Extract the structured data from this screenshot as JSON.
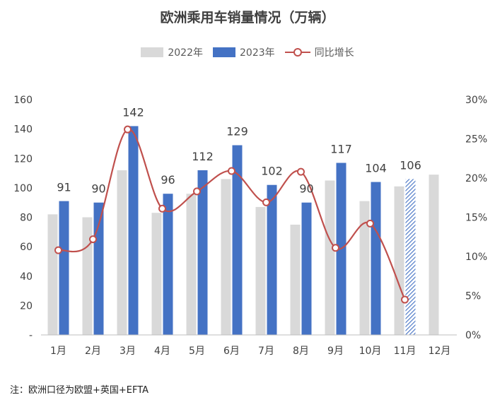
{
  "title": "欧洲乘用车销量情况（万辆）",
  "note": "注：欧洲口径为欧盟+英国+EFTA",
  "colors": {
    "s2022": "#d9d9d9",
    "s2023": "#4472c4",
    "yoy": "#c0504d"
  },
  "chart_data": {
    "type": "bar",
    "title": "欧洲乘用车销量情况（万辆）",
    "categories": [
      "1月",
      "2月",
      "3月",
      "4月",
      "5月",
      "6月",
      "7月",
      "8月",
      "9月",
      "10月",
      "11月",
      "12月"
    ],
    "series": [
      {
        "name": "2022年",
        "type": "bar",
        "values": [
          82,
          80,
          112,
          83,
          96,
          106,
          87,
          75,
          105,
          91,
          101,
          109
        ]
      },
      {
        "name": "2023年",
        "type": "bar",
        "values": [
          91,
          90,
          142,
          96,
          112,
          129,
          102,
          90,
          117,
          104,
          106,
          null
        ],
        "labels": [
          "91",
          "90",
          "142",
          "96",
          "112",
          "129",
          "102",
          "90",
          "117",
          "104",
          "106",
          ""
        ]
      },
      {
        "name": "同比增长",
        "type": "line",
        "axis": "right",
        "values": [
          10.8,
          12.2,
          26.2,
          16.1,
          18.3,
          20.9,
          16.9,
          20.8,
          11.1,
          14.2,
          4.5,
          null
        ]
      }
    ],
    "y_left": {
      "min": 0,
      "max": 160,
      "ticks": [
        "-",
        "20",
        "40",
        "60",
        "80",
        "100",
        "120",
        "140",
        "160"
      ]
    },
    "y_right": {
      "min": 0,
      "max": 30,
      "ticks": [
        "0%",
        "5%",
        "10%",
        "15%",
        "20%",
        "25%",
        "30%"
      ]
    },
    "legend": "top-center",
    "grid": false,
    "forecast_hatched_category": "11月"
  }
}
